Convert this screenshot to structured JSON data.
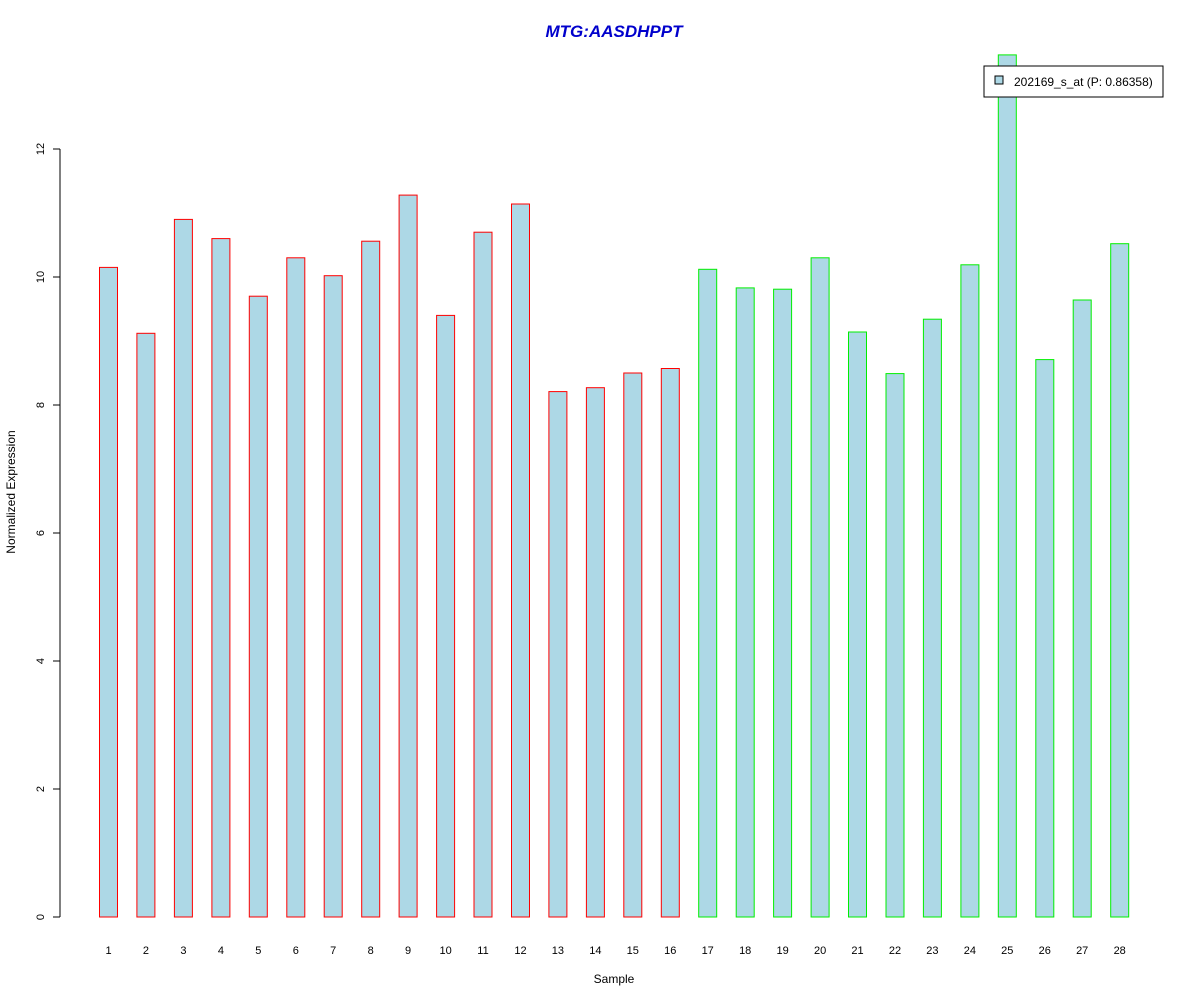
{
  "colors": {
    "title": "#0000CC",
    "bar_fill": "#ADD8E6",
    "group1_border": "#FF0000",
    "group2_border": "#00EE00",
    "axis": "#000000"
  },
  "chart_data": {
    "type": "bar",
    "title": "MTG:AASDHPPT",
    "xlabel": "Sample",
    "ylabel": "Normalized Expression",
    "ylim": [
      0,
      13.5
    ],
    "yticks": [
      0,
      2,
      4,
      6,
      8,
      10,
      12
    ],
    "categories": [
      "1",
      "2",
      "3",
      "4",
      "5",
      "6",
      "7",
      "8",
      "9",
      "10",
      "11",
      "12",
      "13",
      "14",
      "15",
      "16",
      "17",
      "18",
      "19",
      "20",
      "21",
      "22",
      "23",
      "24",
      "25",
      "26",
      "27",
      "28"
    ],
    "series": [
      {
        "name": "202169_s_at (P: 0.86358)",
        "values": [
          10.15,
          9.12,
          10.9,
          10.6,
          9.7,
          10.3,
          10.02,
          10.56,
          11.28,
          9.4,
          10.7,
          11.14,
          8.21,
          8.27,
          8.5,
          8.57,
          10.12,
          9.83,
          9.81,
          10.3,
          9.14,
          8.49,
          9.34,
          10.19,
          13.47,
          8.71,
          9.64,
          10.52
        ]
      }
    ],
    "groups": [
      1,
      1,
      1,
      1,
      1,
      1,
      1,
      1,
      1,
      1,
      1,
      1,
      1,
      1,
      1,
      1,
      2,
      2,
      2,
      2,
      2,
      2,
      2,
      2,
      2,
      2,
      2,
      2
    ],
    "legend": {
      "position": "top-right",
      "label": "202169_s_at (P: 0.86358)"
    },
    "grid": false
  }
}
